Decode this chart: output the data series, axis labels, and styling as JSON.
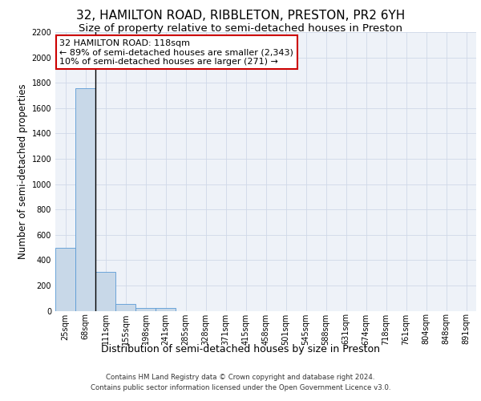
{
  "title": "32, HAMILTON ROAD, RIBBLETON, PRESTON, PR2 6YH",
  "subtitle": "Size of property relative to semi-detached houses in Preston",
  "xlabel": "Distribution of semi-detached houses by size in Preston",
  "ylabel": "Number of semi-detached properties",
  "bar_values": [
    500,
    1760,
    305,
    55,
    25,
    20,
    0,
    0,
    0,
    0,
    0,
    0,
    0,
    0,
    0,
    0,
    0,
    0,
    0,
    0,
    0
  ],
  "bar_labels": [
    "25sqm",
    "68sqm",
    "111sqm",
    "155sqm",
    "198sqm",
    "241sqm",
    "285sqm",
    "328sqm",
    "371sqm",
    "415sqm",
    "458sqm",
    "501sqm",
    "545sqm",
    "588sqm",
    "631sqm",
    "674sqm",
    "718sqm",
    "761sqm",
    "804sqm",
    "848sqm",
    "891sqm"
  ],
  "bar_color": "#c8d8e8",
  "bar_edge_color": "#5b9bd5",
  "highlight_bar_index": 2,
  "property_line_color": "#000000",
  "annotation_text": "32 HAMILTON ROAD: 118sqm\n← 89% of semi-detached houses are smaller (2,343)\n10% of semi-detached houses are larger (271) →",
  "annotation_box_color": "#ffffff",
  "annotation_box_edge_color": "#cc0000",
  "ylim": [
    0,
    2200
  ],
  "yticks": [
    0,
    200,
    400,
    600,
    800,
    1000,
    1200,
    1400,
    1600,
    1800,
    2000,
    2200
  ],
  "grid_color": "#d0d8e8",
  "background_color": "#eef2f8",
  "footer_text": "Contains HM Land Registry data © Crown copyright and database right 2024.\nContains public sector information licensed under the Open Government Licence v3.0.",
  "title_fontsize": 11,
  "subtitle_fontsize": 9.5,
  "ylabel_fontsize": 8.5,
  "xlabel_fontsize": 9,
  "tick_fontsize": 7,
  "annotation_fontsize": 8
}
